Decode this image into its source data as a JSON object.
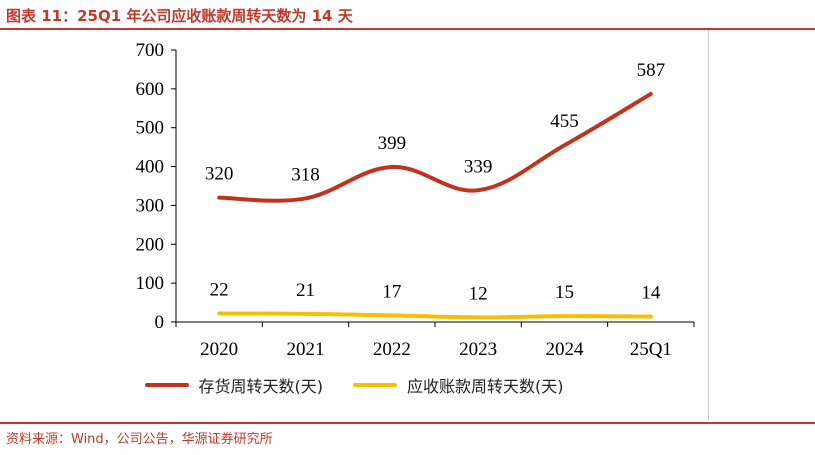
{
  "figure": {
    "title": "图表 11：25Q1 年公司应收账款周转天数为 14 天",
    "source": "资料来源：Wind，公司公告，华源证券研究所",
    "accent_color": "#c0392b"
  },
  "chart_data": {
    "type": "line",
    "categories": [
      "2020",
      "2021",
      "2022",
      "2023",
      "2024",
      "25Q1"
    ],
    "series": [
      {
        "name": "存货周转天数(天)",
        "values": [
          320,
          318,
          399,
          339,
          455,
          587
        ],
        "color": "#c0341d"
      },
      {
        "name": "应收账款周转天数(天)",
        "values": [
          22,
          21,
          17,
          12,
          15,
          14
        ],
        "color": "#f5c000"
      }
    ],
    "yticks": [
      0,
      100,
      200,
      300,
      400,
      500,
      600,
      700
    ],
    "ylim": [
      0,
      700
    ],
    "grid": false,
    "legend_position": "bottom"
  }
}
